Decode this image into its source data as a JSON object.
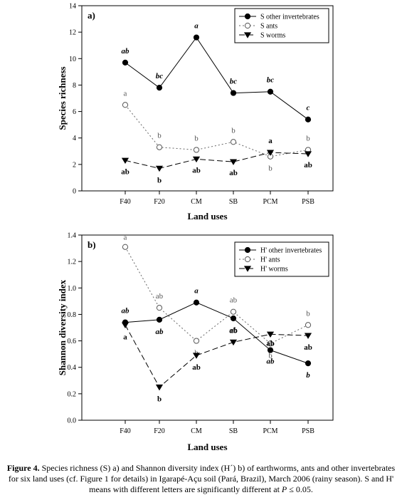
{
  "chart_data": [
    {
      "type": "line",
      "panel_label": "a)",
      "xlabel": "Land uses",
      "ylabel": "Species richness",
      "categories": [
        "F40",
        "F20",
        "CM",
        "SB",
        "PCM",
        "PSB"
      ],
      "ylim": [
        0,
        14
      ],
      "yticks": [
        0,
        2,
        4,
        6,
        8,
        10,
        12,
        14
      ],
      "legend_position": "top-right",
      "series": [
        {
          "name": "S other invertebrates",
          "style": "solid-filled-circle",
          "values": [
            9.7,
            7.8,
            11.6,
            7.4,
            7.5,
            5.4
          ],
          "labels": [
            "ab",
            "bc",
            "a",
            "bc",
            "bc",
            "c"
          ]
        },
        {
          "name": "S ants",
          "style": "dotted-open-circle",
          "values": [
            6.5,
            3.3,
            3.1,
            3.7,
            2.6,
            3.1
          ],
          "labels": [
            "a",
            "b",
            "b",
            "b",
            "b",
            "b"
          ]
        },
        {
          "name": "S worms",
          "style": "dashed-filled-triangle",
          "values": [
            2.3,
            1.7,
            2.4,
            2.2,
            2.9,
            2.8
          ],
          "labels": [
            "ab",
            "b",
            "ab",
            "ab",
            "a",
            "ab"
          ]
        }
      ]
    },
    {
      "type": "line",
      "panel_label": "b)",
      "xlabel": "Land uses",
      "ylabel": "Shannon diversity index",
      "categories": [
        "F40",
        "F20",
        "CM",
        "SB",
        "PCM",
        "PSB"
      ],
      "ylim": [
        0,
        1.4
      ],
      "yticks": [
        "0.0",
        "0.2",
        "0.4",
        "0.6",
        "0.8",
        "1.0",
        "1.2",
        "1.4"
      ],
      "legend_position": "top-right",
      "series": [
        {
          "name": "H' other invertebrates",
          "style": "solid-filled-circle",
          "values": [
            0.74,
            0.76,
            0.89,
            0.77,
            0.53,
            0.43
          ],
          "labels": [
            "ab",
            "ab",
            "a",
            "ab",
            "ab",
            "b"
          ]
        },
        {
          "name": "H' ants",
          "style": "dotted-open-circle",
          "values": [
            1.31,
            0.85,
            0.6,
            0.82,
            0.58,
            0.72
          ],
          "labels": [
            "a",
            "ab",
            "b",
            "ab",
            "b",
            "b"
          ]
        },
        {
          "name": "H' worms",
          "style": "dashed-filled-triangle",
          "values": [
            0.72,
            0.25,
            0.49,
            0.59,
            0.65,
            0.64
          ],
          "labels": [
            "a",
            "b",
            "ab",
            "ab",
            "ab",
            "ab"
          ]
        }
      ]
    }
  ],
  "caption": {
    "bold": "Figure 4.",
    "text": " Species richness (S) a) and Shannon diversity index (H´) b) of earthworms, ants and other invertebrates for six land uses (cf. Figure 1 for details) in Igarapé-Açu soil (Pará, Brazil), March 2006 (rainy season). S and H' means with different letters are significantly different at ",
    "italic": "P",
    "tail": " ≤ 0.05."
  }
}
